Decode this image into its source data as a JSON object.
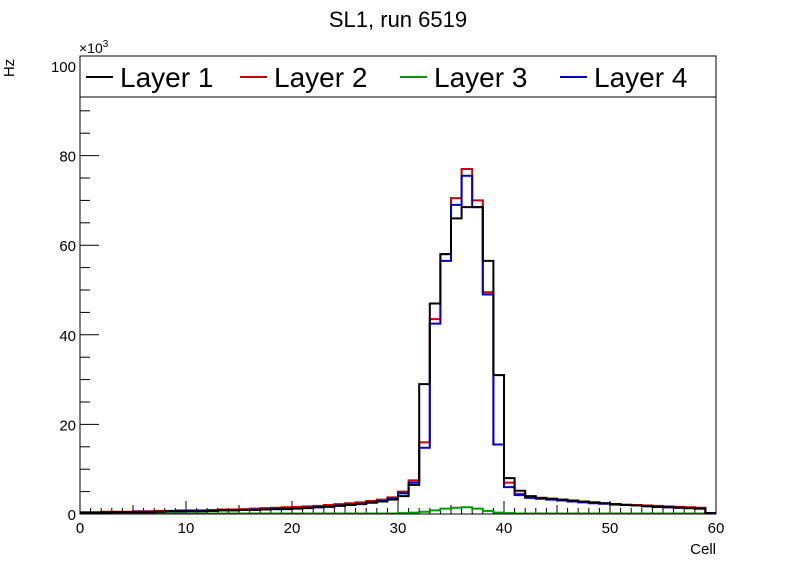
{
  "chart_data": {
    "type": "line",
    "title": "SL1, run 6519",
    "xlabel": "Cell",
    "ylabel": "Hz",
    "y_multiplier": "×10",
    "y_multiplier_exp": "3",
    "xlim": [
      0,
      60
    ],
    "ylim": [
      0,
      100
    ],
    "x_ticks": [
      "0",
      "10",
      "20",
      "30",
      "40",
      "50",
      "60"
    ],
    "y_ticks": [
      "0",
      "20",
      "40",
      "60",
      "80",
      "100"
    ],
    "legend_position": "top",
    "x": [
      0,
      1,
      2,
      3,
      4,
      5,
      6,
      7,
      8,
      9,
      10,
      11,
      12,
      13,
      14,
      15,
      16,
      17,
      18,
      19,
      20,
      21,
      22,
      23,
      24,
      25,
      26,
      27,
      28,
      29,
      30,
      31,
      32,
      33,
      34,
      35,
      36,
      37,
      38,
      39,
      40,
      41,
      42,
      43,
      44,
      45,
      46,
      47,
      48,
      49,
      50,
      51,
      52,
      53,
      54,
      55,
      56,
      57,
      58,
      59
    ],
    "series": [
      {
        "name": "Layer 1",
        "color": "#000000",
        "values": [
          0.3,
          0.3,
          0.3,
          0.4,
          0.4,
          0.4,
          0.4,
          0.5,
          0.6,
          0.6,
          0.6,
          0.6,
          0.7,
          0.8,
          0.8,
          0.9,
          0.9,
          1.0,
          1.1,
          1.1,
          1.2,
          1.3,
          1.5,
          1.6,
          1.8,
          2.0,
          2.2,
          2.5,
          2.8,
          3.2,
          4.0,
          6.5,
          29.0,
          47.0,
          58.0,
          66.0,
          68.5,
          68.5,
          56.5,
          31.0,
          8.0,
          5.2,
          4.0,
          3.6,
          3.4,
          3.2,
          3.0,
          2.8,
          2.6,
          2.4,
          2.2,
          2.0,
          1.9,
          1.8,
          1.6,
          1.5,
          1.4,
          1.3,
          1.2,
          0.2
        ]
      },
      {
        "name": "Layer 2",
        "color": "#cc0000",
        "values": [
          0.4,
          0.4,
          0.5,
          0.5,
          0.5,
          0.6,
          0.6,
          0.7,
          0.7,
          0.8,
          0.8,
          0.8,
          0.9,
          1.0,
          1.0,
          1.1,
          1.2,
          1.3,
          1.4,
          1.5,
          1.6,
          1.7,
          1.8,
          2.0,
          2.2,
          2.4,
          2.6,
          2.9,
          3.2,
          3.7,
          5.0,
          7.5,
          16.0,
          43.5,
          58.0,
          70.5,
          77.0,
          70.0,
          49.5,
          15.5,
          7.0,
          4.5,
          3.8,
          3.6,
          3.4,
          3.2,
          3.0,
          2.8,
          2.6,
          2.4,
          2.2,
          2.1,
          2.0,
          1.9,
          1.8,
          1.7,
          1.6,
          1.5,
          1.4,
          0.2
        ]
      },
      {
        "name": "Layer 3",
        "color": "#009900",
        "values": [
          0.1,
          0.1,
          0.1,
          0.1,
          0.1,
          0.1,
          0.1,
          0.1,
          0.1,
          0.1,
          0.1,
          0.1,
          0.1,
          0.1,
          0.1,
          0.1,
          0.1,
          0.1,
          0.1,
          0.1,
          0.1,
          0.1,
          0.1,
          0.1,
          0.1,
          0.1,
          0.1,
          0.1,
          0.1,
          0.1,
          0.2,
          0.3,
          0.5,
          0.8,
          1.2,
          1.4,
          1.5,
          1.2,
          0.7,
          0.3,
          0.2,
          0.1,
          0.1,
          0.1,
          0.1,
          0.1,
          0.1,
          0.1,
          0.1,
          0.1,
          0.1,
          0.1,
          0.1,
          0.1,
          0.1,
          0.1,
          0.1,
          0.1,
          0.1,
          0.1
        ]
      },
      {
        "name": "Layer 4",
        "color": "#0000cc",
        "values": [
          0.3,
          0.3,
          0.4,
          0.4,
          0.4,
          0.5,
          0.5,
          0.5,
          0.6,
          0.6,
          0.7,
          0.7,
          0.7,
          0.8,
          0.8,
          0.9,
          1.0,
          1.0,
          1.1,
          1.2,
          1.3,
          1.4,
          1.5,
          1.7,
          1.9,
          2.1,
          2.3,
          2.6,
          2.9,
          3.4,
          4.6,
          7.0,
          14.8,
          42.5,
          56.5,
          69.0,
          75.5,
          68.5,
          49.0,
          15.5,
          6.0,
          4.2,
          3.6,
          3.4,
          3.2,
          3.0,
          2.8,
          2.6,
          2.4,
          2.3,
          2.1,
          2.0,
          1.9,
          1.7,
          1.6,
          1.5,
          1.4,
          1.3,
          1.2,
          0.2
        ]
      }
    ]
  }
}
